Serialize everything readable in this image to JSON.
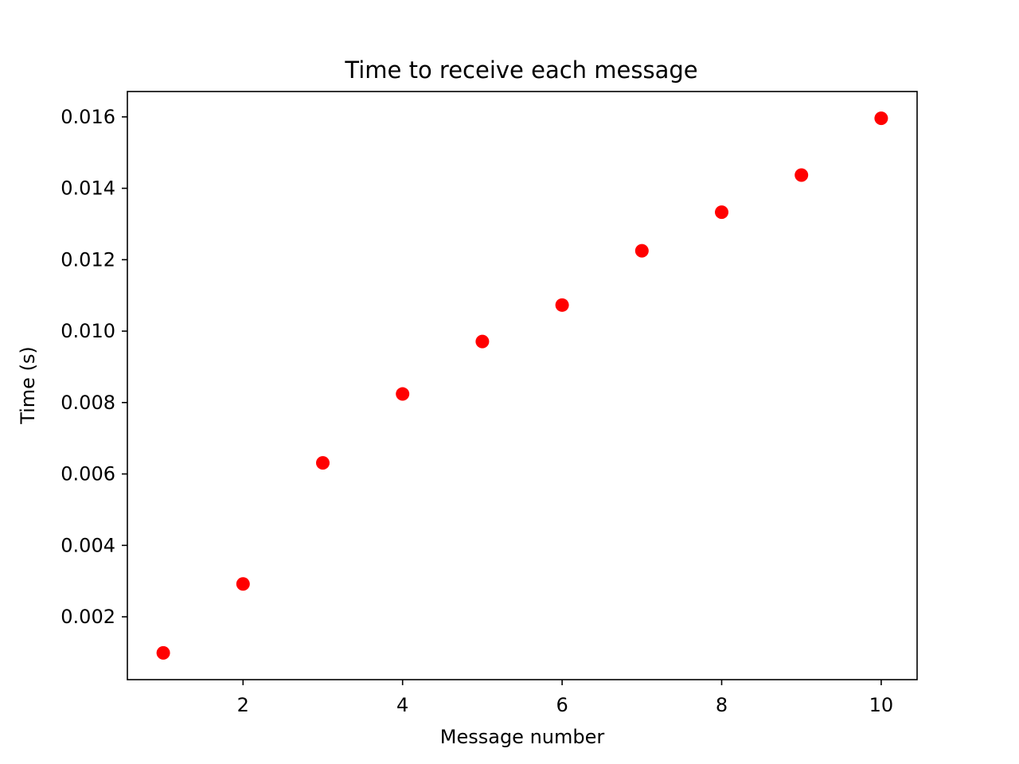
{
  "chart_data": {
    "type": "scatter",
    "title": "Time to receive each message",
    "xlabel": "Message number",
    "ylabel": "Time (s)",
    "x": [
      1,
      2,
      3,
      4,
      5,
      6,
      7,
      8,
      9,
      10
    ],
    "y": [
      0.00099,
      0.00292,
      0.00631,
      0.00824,
      0.00971,
      0.01073,
      0.01225,
      0.01333,
      0.01437,
      0.01596
    ],
    "xlim": [
      0.55,
      10.45
    ],
    "ylim": [
      0.00024,
      0.01671
    ],
    "xticks": [
      2,
      4,
      6,
      8,
      10
    ],
    "xtick_labels": [
      "2",
      "4",
      "6",
      "8",
      "10"
    ],
    "yticks": [
      0.002,
      0.004,
      0.006,
      0.008,
      0.01,
      0.012,
      0.014,
      0.016
    ],
    "ytick_labels": [
      "0.002",
      "0.004",
      "0.006",
      "0.008",
      "0.010",
      "0.012",
      "0.014",
      "0.016"
    ],
    "marker_color": "#ff0000",
    "grid": false,
    "legend": "none"
  }
}
